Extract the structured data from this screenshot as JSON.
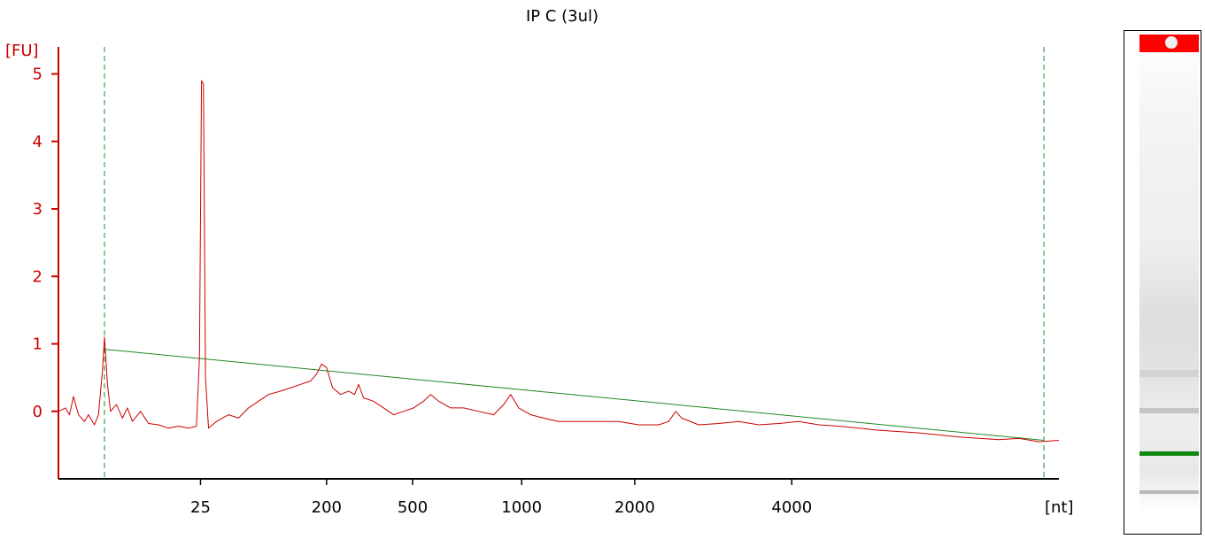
{
  "chart_data": {
    "type": "line",
    "title": "IP C (3ul)",
    "ylabel": "[FU]",
    "xlabel": "[nt]",
    "ylim": [
      -1,
      5.4
    ],
    "yticks": [
      0,
      1,
      2,
      3,
      4,
      5
    ],
    "xtick_labels": [
      "25",
      "200",
      "500",
      "1000",
      "2000",
      "4000"
    ],
    "x_unit": "nt",
    "colors": {
      "axis": "#cc0000",
      "trace": "#cc0000",
      "baseline": "#228822",
      "marker_line": "#228822",
      "upper_marker_band": "#ff0000",
      "lower_marker_band": "#118811"
    },
    "series": [
      {
        "values": [
          {
            "x": 0.0,
            "y": 0.0
          },
          {
            "x": 0.007,
            "y": 0.05
          },
          {
            "x": 0.011,
            "y": -0.05
          },
          {
            "x": 0.015,
            "y": 0.22
          },
          {
            "x": 0.02,
            "y": -0.05
          },
          {
            "x": 0.026,
            "y": -0.15
          },
          {
            "x": 0.03,
            "y": -0.05
          },
          {
            "x": 0.036,
            "y": -0.2
          },
          {
            "x": 0.04,
            "y": -0.05
          },
          {
            "x": 0.044,
            "y": 0.6
          },
          {
            "x": 0.046,
            "y": 1.1
          },
          {
            "x": 0.049,
            "y": 0.4
          },
          {
            "x": 0.052,
            "y": 0.0
          },
          {
            "x": 0.058,
            "y": 0.1
          },
          {
            "x": 0.064,
            "y": -0.1
          },
          {
            "x": 0.069,
            "y": 0.05
          },
          {
            "x": 0.074,
            "y": -0.15
          },
          {
            "x": 0.082,
            "y": 0.0
          },
          {
            "x": 0.09,
            "y": -0.18
          },
          {
            "x": 0.1,
            "y": -0.2
          },
          {
            "x": 0.11,
            "y": -0.25
          },
          {
            "x": 0.12,
            "y": -0.22
          },
          {
            "x": 0.13,
            "y": -0.25
          },
          {
            "x": 0.138,
            "y": -0.22
          },
          {
            "x": 0.141,
            "y": 0.8
          },
          {
            "x": 0.143,
            "y": 4.9
          },
          {
            "x": 0.145,
            "y": 4.85
          },
          {
            "x": 0.147,
            "y": 0.5
          },
          {
            "x": 0.15,
            "y": -0.25
          },
          {
            "x": 0.158,
            "y": -0.15
          },
          {
            "x": 0.17,
            "y": -0.05
          },
          {
            "x": 0.18,
            "y": -0.1
          },
          {
            "x": 0.19,
            "y": 0.05
          },
          {
            "x": 0.2,
            "y": 0.15
          },
          {
            "x": 0.21,
            "y": 0.25
          },
          {
            "x": 0.222,
            "y": 0.3
          },
          {
            "x": 0.232,
            "y": 0.35
          },
          {
            "x": 0.242,
            "y": 0.4
          },
          {
            "x": 0.252,
            "y": 0.45
          },
          {
            "x": 0.258,
            "y": 0.55
          },
          {
            "x": 0.263,
            "y": 0.7
          },
          {
            "x": 0.268,
            "y": 0.65
          },
          {
            "x": 0.274,
            "y": 0.35
          },
          {
            "x": 0.282,
            "y": 0.25
          },
          {
            "x": 0.29,
            "y": 0.3
          },
          {
            "x": 0.296,
            "y": 0.25
          },
          {
            "x": 0.3,
            "y": 0.4
          },
          {
            "x": 0.305,
            "y": 0.2
          },
          {
            "x": 0.315,
            "y": 0.15
          },
          {
            "x": 0.325,
            "y": 0.05
          },
          {
            "x": 0.335,
            "y": -0.05
          },
          {
            "x": 0.345,
            "y": 0.0
          },
          {
            "x": 0.355,
            "y": 0.05
          },
          {
            "x": 0.365,
            "y": 0.15
          },
          {
            "x": 0.372,
            "y": 0.25
          },
          {
            "x": 0.38,
            "y": 0.15
          },
          {
            "x": 0.392,
            "y": 0.05
          },
          {
            "x": 0.405,
            "y": 0.05
          },
          {
            "x": 0.42,
            "y": 0.0
          },
          {
            "x": 0.435,
            "y": -0.05
          },
          {
            "x": 0.445,
            "y": 0.1
          },
          {
            "x": 0.452,
            "y": 0.25
          },
          {
            "x": 0.46,
            "y": 0.05
          },
          {
            "x": 0.472,
            "y": -0.05
          },
          {
            "x": 0.485,
            "y": -0.1
          },
          {
            "x": 0.5,
            "y": -0.15
          },
          {
            "x": 0.52,
            "y": -0.15
          },
          {
            "x": 0.54,
            "y": -0.15
          },
          {
            "x": 0.56,
            "y": -0.15
          },
          {
            "x": 0.58,
            "y": -0.2
          },
          {
            "x": 0.6,
            "y": -0.2
          },
          {
            "x": 0.61,
            "y": -0.15
          },
          {
            "x": 0.617,
            "y": 0.0
          },
          {
            "x": 0.623,
            "y": -0.1
          },
          {
            "x": 0.64,
            "y": -0.2
          },
          {
            "x": 0.66,
            "y": -0.18
          },
          {
            "x": 0.68,
            "y": -0.15
          },
          {
            "x": 0.7,
            "y": -0.2
          },
          {
            "x": 0.72,
            "y": -0.18
          },
          {
            "x": 0.74,
            "y": -0.15
          },
          {
            "x": 0.76,
            "y": -0.2
          },
          {
            "x": 0.78,
            "y": -0.22
          },
          {
            "x": 0.8,
            "y": -0.25
          },
          {
            "x": 0.82,
            "y": -0.28
          },
          {
            "x": 0.84,
            "y": -0.3
          },
          {
            "x": 0.86,
            "y": -0.32
          },
          {
            "x": 0.88,
            "y": -0.35
          },
          {
            "x": 0.9,
            "y": -0.38
          },
          {
            "x": 0.92,
            "y": -0.4
          },
          {
            "x": 0.94,
            "y": -0.42
          },
          {
            "x": 0.96,
            "y": -0.4
          },
          {
            "x": 0.98,
            "y": -0.45
          },
          {
            "x": 1.0,
            "y": -0.43
          }
        ]
      }
    ],
    "baseline": [
      {
        "x": 0.046,
        "y": 0.92
      },
      {
        "x": 0.985,
        "y": -0.43
      }
    ],
    "marker_lines_x": [
      0.046,
      0.985
    ],
    "xtick_positions": [
      0.142,
      0.268,
      0.354,
      0.463,
      0.576,
      0.733
    ],
    "grid": false,
    "legend": "none"
  }
}
